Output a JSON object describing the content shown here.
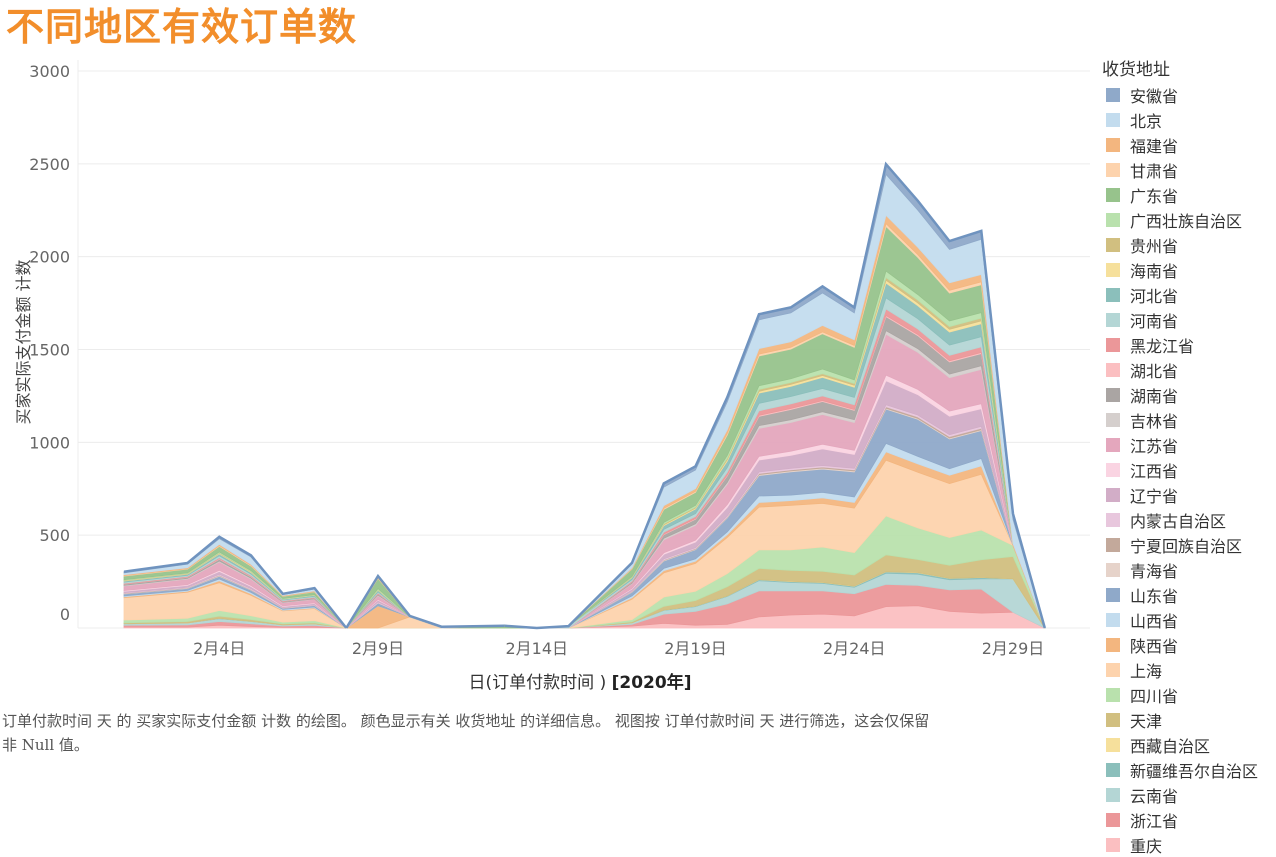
{
  "title": "不同地区有效订单数",
  "y_axis_label": "买家实际支付金额 计数",
  "x_axis_title": {
    "prefix": "日(订单付款时间 ) ",
    "suffix": "[2020年]"
  },
  "legend": {
    "title": "收货地址",
    "items": [
      {
        "label": "安徽省",
        "color": "#8fa9c9"
      },
      {
        "label": "北京",
        "color": "#c3dcee"
      },
      {
        "label": "福建省",
        "color": "#f3b67f"
      },
      {
        "label": "甘肃省",
        "color": "#fdd3ad"
      },
      {
        "label": "广东省",
        "color": "#97c38c"
      },
      {
        "label": "广西壮族自治区",
        "color": "#b9e1ad"
      },
      {
        "label": "贵州省",
        "color": "#d1bf80"
      },
      {
        "label": "海南省",
        "color": "#f6e09c"
      },
      {
        "label": "河北省",
        "color": "#8bbfbb"
      },
      {
        "label": "河南省",
        "color": "#b4d6d5"
      },
      {
        "label": "黑龙江省",
        "color": "#eb9799"
      },
      {
        "label": "湖北省",
        "color": "#fbbfc1"
      },
      {
        "label": "湖南省",
        "color": "#aaa5a3"
      },
      {
        "label": "吉林省",
        "color": "#d5cfcd"
      },
      {
        "label": "江苏省",
        "color": "#e4a7bd"
      },
      {
        "label": "江西省",
        "color": "#fad4e2"
      },
      {
        "label": "辽宁省",
        "color": "#d2adc7"
      },
      {
        "label": "内蒙古自治区",
        "color": "#e8c7dd"
      },
      {
        "label": "宁夏回族自治区",
        "color": "#c3a99b"
      },
      {
        "label": "青海省",
        "color": "#e6d3ca"
      },
      {
        "label": "山东省",
        "color": "#8fa9c9"
      },
      {
        "label": "山西省",
        "color": "#c3dcee"
      },
      {
        "label": "陕西省",
        "color": "#f3b67f"
      },
      {
        "label": "上海",
        "color": "#fdd3ad"
      },
      {
        "label": "四川省",
        "color": "#b9e1ad"
      },
      {
        "label": "天津",
        "color": "#d1bf80"
      },
      {
        "label": "西藏自治区",
        "color": "#f6e09c"
      },
      {
        "label": "新疆维吾尔自治区",
        "color": "#8bbfbb"
      },
      {
        "label": "云南省",
        "color": "#b4d6d5"
      },
      {
        "label": "浙江省",
        "color": "#eb9799"
      },
      {
        "label": "重庆",
        "color": "#fbbfc1"
      }
    ]
  },
  "caption": "订单付款时间 天 的 买家实际支付金额 计数 的绘图。 颜色显示有关 收货地址 的详细信息。 视图按 订单付款时间 天 进行筛选，这会仅保留非 Null 值。",
  "chart_data": {
    "type": "area",
    "stacked": true,
    "title": "不同地区有效订单数",
    "xlabel": "日(订单付款时间 ) [2020年]",
    "ylabel": "买家实际支付金额 计数",
    "ylim": [
      0,
      3000
    ],
    "yticks": [
      0,
      500,
      1000,
      1500,
      2000,
      2500,
      3000
    ],
    "xticks": [
      "2月4日",
      "2月9日",
      "2月14日",
      "2月19日",
      "2月24日",
      "2月29日"
    ],
    "grid": true,
    "legend_position": "right",
    "x": [
      "2/1",
      "2/3",
      "2/4",
      "2/5",
      "2/6",
      "2/7",
      "2/8",
      "2/9",
      "2/10",
      "2/11",
      "2/13",
      "2/14",
      "2/15",
      "2/17",
      "2/18",
      "2/19",
      "2/20",
      "2/21",
      "2/22",
      "2/23",
      "2/24",
      "2/25",
      "2/26",
      "2/27",
      "2/28",
      "2/29",
      "3/1"
    ],
    "segments": [
      [
        0,
        6
      ],
      [
        6,
        10
      ],
      [
        10,
        26
      ]
    ],
    "stack_order_bottom_to_top": [
      "重庆",
      "浙江省",
      "云南省",
      "新疆维吾尔自治区",
      "西藏自治区",
      "天津",
      "四川省",
      "上海",
      "陕西省",
      "山西省",
      "山东省",
      "青海省",
      "宁夏回族自治区",
      "内蒙古自治区",
      "辽宁省",
      "江西省",
      "江苏省",
      "吉林省",
      "湖南省",
      "湖北省",
      "黑龙江省",
      "河南省",
      "河北省",
      "海南省",
      "贵州省",
      "广西壮族自治区",
      "广东省",
      "甘肃省",
      "福建省",
      "北京",
      "安徽省"
    ],
    "series": [
      {
        "name": "重庆",
        "values": [
          5,
          5,
          15,
          8,
          3,
          4,
          0,
          0,
          0,
          0,
          0,
          0,
          0,
          10,
          25,
          15,
          20,
          60,
          70,
          75,
          65,
          115,
          120,
          90,
          80,
          85,
          0
        ]
      },
      {
        "name": "浙江省",
        "values": [
          10,
          12,
          20,
          15,
          8,
          10,
          0,
          0,
          0,
          0,
          0,
          0,
          0,
          10,
          50,
          75,
          110,
          140,
          130,
          125,
          120,
          120,
          110,
          115,
          130,
          0,
          0
        ]
      },
      {
        "name": "云南省",
        "values": [
          8,
          10,
          15,
          12,
          6,
          8,
          0,
          0,
          0,
          0,
          0,
          0,
          0,
          8,
          20,
          25,
          40,
          55,
          45,
          40,
          35,
          60,
          60,
          55,
          55,
          180,
          0
        ]
      },
      {
        "name": "新疆维吾尔自治区",
        "values": [
          0,
          0,
          2,
          1,
          0,
          0,
          0,
          0,
          0,
          0,
          0,
          0,
          0,
          0,
          2,
          3,
          3,
          5,
          5,
          5,
          5,
          8,
          8,
          7,
          7,
          0,
          0
        ]
      },
      {
        "name": "西藏自治区",
        "values": [
          0,
          0,
          0,
          0,
          0,
          0,
          0,
          0,
          0,
          0,
          0,
          0,
          0,
          0,
          0,
          0,
          0,
          1,
          1,
          1,
          1,
          1,
          1,
          1,
          1,
          0,
          0
        ]
      },
      {
        "name": "天津",
        "values": [
          5,
          8,
          12,
          10,
          5,
          6,
          0,
          0,
          0,
          0,
          0,
          0,
          0,
          5,
          20,
          30,
          50,
          60,
          60,
          60,
          60,
          90,
          70,
          70,
          95,
          120,
          0
        ]
      },
      {
        "name": "四川省",
        "values": [
          15,
          18,
          30,
          20,
          10,
          12,
          0,
          0,
          0,
          0,
          0,
          0,
          0,
          12,
          50,
          50,
          70,
          100,
          110,
          130,
          120,
          210,
          170,
          150,
          160,
          60,
          0
        ]
      },
      {
        "name": "上海",
        "values": [
          120,
          140,
          150,
          110,
          60,
          65,
          0,
          0,
          60,
          0,
          0,
          0,
          0,
          110,
          130,
          150,
          195,
          230,
          240,
          235,
          240,
          300,
          300,
          290,
          300,
          0,
          0
        ]
      },
      {
        "name": "陕西省",
        "values": [
          5,
          5,
          10,
          8,
          4,
          4,
          0,
          120,
          0,
          0,
          0,
          0,
          0,
          8,
          12,
          12,
          15,
          25,
          25,
          30,
          30,
          45,
          45,
          45,
          45,
          0,
          0
        ]
      },
      {
        "name": "山西省",
        "values": [
          5,
          5,
          10,
          8,
          4,
          4,
          0,
          0,
          0,
          2,
          0,
          0,
          0,
          10,
          12,
          12,
          15,
          35,
          30,
          30,
          30,
          45,
          40,
          35,
          40,
          0,
          0
        ]
      },
      {
        "name": "山东省",
        "values": [
          10,
          10,
          15,
          12,
          6,
          8,
          0,
          15,
          0,
          0,
          0,
          0,
          0,
          20,
          40,
          50,
          75,
          110,
          125,
          125,
          135,
          185,
          200,
          160,
          150,
          0,
          0
        ]
      },
      {
        "name": "青海省",
        "values": [
          2,
          2,
          3,
          2,
          1,
          1,
          0,
          0,
          0,
          0,
          0,
          0,
          0,
          2,
          3,
          3,
          3,
          5,
          5,
          5,
          5,
          5,
          5,
          5,
          5,
          0,
          0
        ]
      },
      {
        "name": "宁夏回族自治区",
        "values": [
          2,
          2,
          3,
          2,
          1,
          1,
          0,
          0,
          0,
          0,
          0,
          0,
          0,
          2,
          3,
          3,
          3,
          6,
          6,
          6,
          6,
          8,
          8,
          8,
          8,
          0,
          0
        ]
      },
      {
        "name": "内蒙古自治区",
        "values": [
          3,
          3,
          5,
          4,
          2,
          2,
          0,
          5,
          0,
          0,
          0,
          0,
          0,
          3,
          5,
          5,
          6,
          8,
          8,
          8,
          8,
          10,
          10,
          10,
          10,
          0,
          0
        ]
      },
      {
        "name": "辽宁省",
        "values": [
          8,
          10,
          15,
          12,
          6,
          7,
          0,
          10,
          0,
          0,
          0,
          0,
          0,
          10,
          25,
          30,
          45,
          65,
          70,
          90,
          75,
          130,
          110,
          100,
          95,
          0,
          0
        ]
      },
      {
        "name": "江西省",
        "values": [
          4,
          4,
          6,
          5,
          3,
          3,
          0,
          4,
          0,
          0,
          0,
          0,
          0,
          4,
          8,
          10,
          15,
          20,
          22,
          25,
          22,
          30,
          28,
          27,
          27,
          0,
          0
        ]
      },
      {
        "name": "江苏省",
        "values": [
          25,
          30,
          45,
          35,
          18,
          20,
          0,
          20,
          0,
          0,
          0,
          0,
          0,
          25,
          70,
          80,
          110,
          150,
          155,
          160,
          150,
          220,
          200,
          180,
          185,
          0,
          0
        ]
      },
      {
        "name": "吉林省",
        "values": [
          3,
          3,
          5,
          4,
          2,
          2,
          0,
          4,
          0,
          0,
          0,
          0,
          0,
          3,
          8,
          8,
          10,
          15,
          15,
          15,
          15,
          20,
          20,
          20,
          20,
          0,
          0
        ]
      },
      {
        "name": "湖南省",
        "values": [
          6,
          6,
          10,
          8,
          4,
          5,
          0,
          6,
          0,
          0,
          0,
          0,
          0,
          6,
          20,
          25,
          35,
          50,
          55,
          55,
          50,
          75,
          70,
          65,
          65,
          0,
          0
        ]
      },
      {
        "name": "湖北省",
        "values": [
          1,
          1,
          2,
          2,
          1,
          1,
          0,
          1,
          0,
          0,
          0,
          0,
          0,
          1,
          3,
          3,
          4,
          5,
          5,
          5,
          5,
          6,
          6,
          6,
          6,
          0,
          0
        ]
      },
      {
        "name": "黑龙江省",
        "values": [
          4,
          4,
          6,
          5,
          3,
          3,
          0,
          4,
          0,
          0,
          0,
          0,
          0,
          4,
          10,
          12,
          15,
          25,
          25,
          25,
          25,
          35,
          30,
          30,
          30,
          0,
          0
        ]
      },
      {
        "name": "河南省",
        "values": [
          6,
          6,
          10,
          8,
          4,
          5,
          0,
          6,
          0,
          0,
          0,
          0,
          10,
          8,
          15,
          15,
          25,
          40,
          40,
          40,
          40,
          60,
          55,
          55,
          55,
          0,
          0
        ]
      },
      {
        "name": "河北省",
        "values": [
          6,
          6,
          10,
          8,
          4,
          5,
          0,
          8,
          0,
          0,
          0,
          0,
          0,
          10,
          20,
          25,
          35,
          55,
          55,
          60,
          55,
          80,
          70,
          70,
          70,
          0,
          0
        ]
      },
      {
        "name": "海南省",
        "values": [
          2,
          2,
          3,
          3,
          1,
          1,
          0,
          2,
          0,
          0,
          0,
          0,
          0,
          2,
          5,
          5,
          8,
          10,
          10,
          10,
          10,
          15,
          15,
          15,
          15,
          0,
          0
        ]
      },
      {
        "name": "贵州省",
        "values": [
          2,
          2,
          3,
          3,
          1,
          1,
          0,
          2,
          0,
          0,
          0,
          0,
          0,
          2,
          5,
          5,
          8,
          10,
          10,
          10,
          10,
          15,
          15,
          15,
          15,
          0,
          0
        ]
      },
      {
        "name": "广西壮族自治区",
        "values": [
          3,
          3,
          5,
          4,
          2,
          2,
          0,
          5,
          0,
          0,
          0,
          0,
          0,
          3,
          8,
          10,
          15,
          20,
          20,
          25,
          20,
          35,
          30,
          30,
          30,
          0,
          0
        ]
      },
      {
        "name": "广东省",
        "values": [
          20,
          20,
          30,
          25,
          12,
          15,
          0,
          55,
          0,
          0,
          12,
          0,
          0,
          40,
          70,
          70,
          110,
          160,
          160,
          190,
          175,
          240,
          200,
          150,
          150,
          0,
          0
        ]
      },
      {
        "name": "甘肃省",
        "values": [
          2,
          2,
          3,
          3,
          1,
          1,
          0,
          3,
          0,
          0,
          0,
          0,
          0,
          2,
          5,
          5,
          8,
          10,
          10,
          10,
          10,
          15,
          15,
          15,
          15,
          0,
          0
        ]
      },
      {
        "name": "福建省",
        "values": [
          5,
          5,
          8,
          6,
          3,
          4,
          0,
          5,
          0,
          0,
          0,
          0,
          0,
          5,
          15,
          15,
          20,
          30,
          30,
          35,
          30,
          45,
          40,
          40,
          40,
          10,
          0
        ]
      },
      {
        "name": "北京",
        "values": [
          10,
          20,
          30,
          40,
          5,
          10,
          0,
          0,
          5,
          5,
          0,
          0,
          0,
          20,
          100,
          100,
          150,
          155,
          155,
          175,
          145,
          220,
          200,
          180,
          190,
          130,
          0
        ]
      },
      {
        "name": "安徽省",
        "values": [
          6,
          6,
          10,
          8,
          4,
          5,
          0,
          5,
          0,
          0,
          0,
          0,
          0,
          6,
          20,
          20,
          25,
          30,
          30,
          35,
          30,
          55,
          50,
          45,
          45,
          30,
          0
        ]
      }
    ]
  }
}
